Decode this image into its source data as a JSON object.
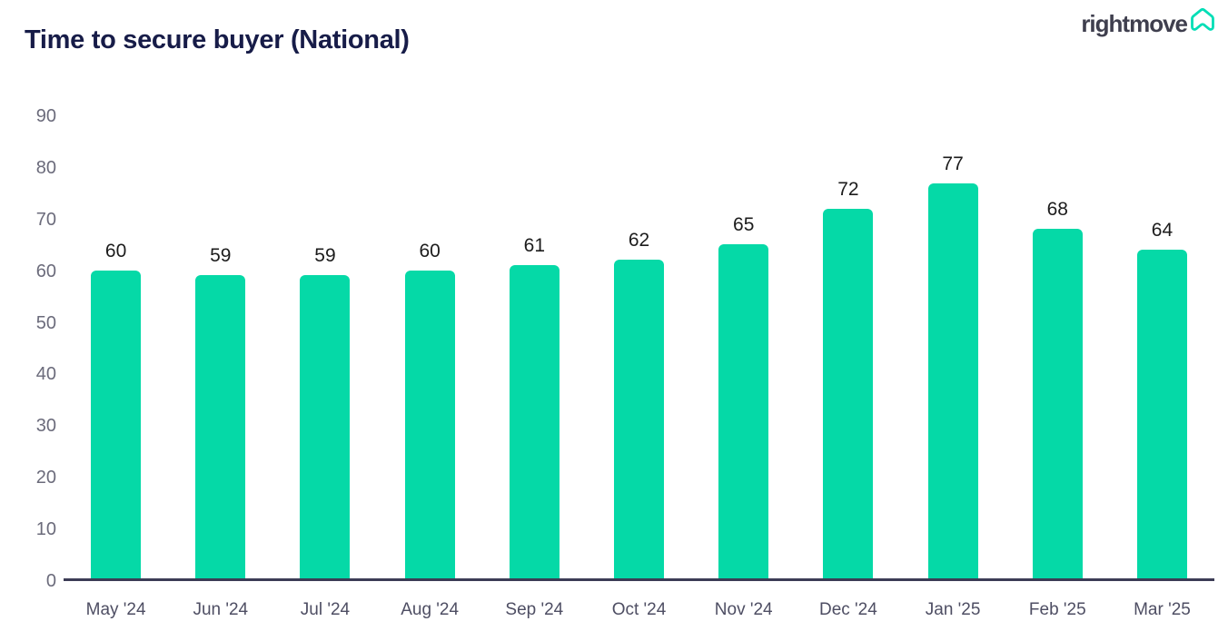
{
  "header": {
    "title": "Time to secure buyer (National)",
    "logo_text": "rightmove",
    "logo_icon": "house-icon"
  },
  "chart_data": {
    "type": "bar",
    "title": "Time to secure buyer (National)",
    "categories": [
      "May '24",
      "Jun '24",
      "Jul '24",
      "Aug '24",
      "Sep '24",
      "Oct '24",
      "Nov '24",
      "Dec '24",
      "Jan '25",
      "Feb '25",
      "Mar '25"
    ],
    "values": [
      60,
      59,
      59,
      60,
      61,
      62,
      65,
      72,
      77,
      68,
      64
    ],
    "xlabel": "",
    "ylabel": "",
    "ylim": [
      0,
      90
    ],
    "yticks": [
      0,
      10,
      20,
      30,
      40,
      50,
      60,
      70,
      80,
      90
    ],
    "grid": false,
    "legend": "none",
    "value_labels": true,
    "bar_color": "#05d9a7"
  },
  "colors": {
    "background": "#ffffff",
    "bar": "#05d9a7",
    "accent_teal": "#00deb6",
    "title": "#171c48",
    "logo_text": "#3f3f4e",
    "axis_line": "#3c3c55",
    "ytick_text": "#6b6b7b",
    "xtick_text": "#4e4e63",
    "value_label_text": "#1c1c1c"
  }
}
